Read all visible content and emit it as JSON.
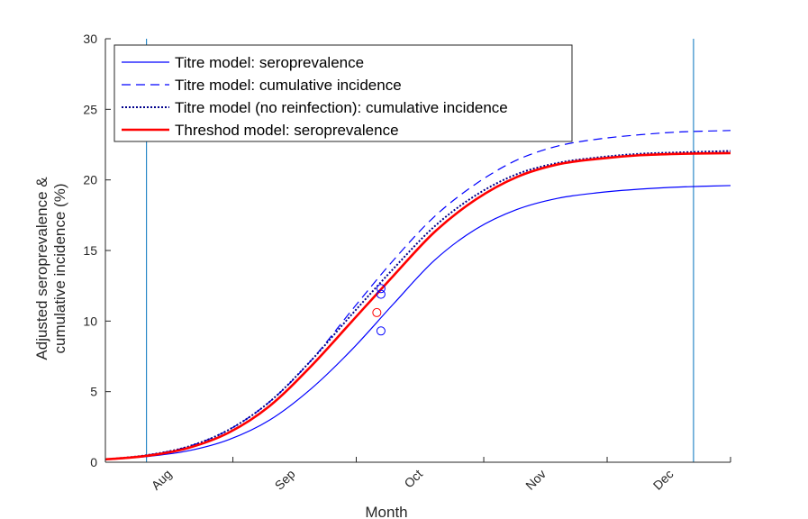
{
  "chart_data": {
    "type": "line",
    "xlabel": "Month",
    "ylabel_lines": [
      "Adjusted seroprevalence &",
      "cumulative incidence (%)"
    ],
    "xlim": [
      0,
      152
    ],
    "ylim": [
      0,
      30
    ],
    "yticks": [
      0,
      5,
      10,
      15,
      20,
      25,
      30
    ],
    "x_tick_marks": [
      0,
      31,
      61,
      92,
      122,
      152
    ],
    "x_tick_labels": [
      {
        "x": 15,
        "label": "Aug"
      },
      {
        "x": 45,
        "label": "Sep"
      },
      {
        "x": 76,
        "label": "Oct"
      },
      {
        "x": 106,
        "label": "Nov"
      },
      {
        "x": 137,
        "label": "Dec"
      }
    ],
    "vertical_lines": [
      10,
      143
    ],
    "legend_position": "top-left",
    "series": [
      {
        "name": "Titre model: seroprevalence",
        "color": "#0000ff",
        "style": "solid",
        "width": 1.2,
        "x": [
          0,
          10,
          20,
          30,
          40,
          50,
          60,
          70,
          80,
          90,
          100,
          110,
          120,
          130,
          140,
          152
        ],
        "y": [
          0.2,
          0.4,
          0.8,
          1.6,
          3.0,
          5.2,
          8.0,
          11.2,
          14.3,
          16.5,
          17.9,
          18.7,
          19.1,
          19.35,
          19.5,
          19.6
        ]
      },
      {
        "name": "Titre model: cumulative incidence",
        "color": "#0000ff",
        "style": "dashed",
        "width": 1.2,
        "x": [
          0,
          10,
          20,
          30,
          40,
          50,
          60,
          70,
          80,
          90,
          100,
          110,
          120,
          130,
          140,
          152
        ],
        "y": [
          0.2,
          0.5,
          1.1,
          2.3,
          4.3,
          7.2,
          10.8,
          14.3,
          17.4,
          19.7,
          21.4,
          22.4,
          22.9,
          23.2,
          23.4,
          23.5
        ]
      },
      {
        "name": "Titre model (no reinfection): cumulative incidence",
        "color": "#00008b",
        "style": "dotted",
        "width": 2,
        "x": [
          0,
          10,
          20,
          30,
          40,
          50,
          60,
          70,
          80,
          90,
          100,
          110,
          120,
          130,
          140,
          152
        ],
        "y": [
          0.2,
          0.5,
          1.1,
          2.3,
          4.3,
          7.2,
          10.5,
          13.7,
          16.7,
          18.9,
          20.4,
          21.2,
          21.6,
          21.85,
          21.95,
          22.05
        ]
      },
      {
        "name": "Threshod model: seroprevalence",
        "color": "#ff0000",
        "style": "solid",
        "width": 2.6,
        "x": [
          0,
          10,
          20,
          30,
          40,
          50,
          60,
          70,
          80,
          90,
          100,
          110,
          120,
          130,
          140,
          152
        ],
        "y": [
          0.2,
          0.45,
          1.0,
          2.1,
          4.0,
          6.8,
          10.0,
          13.2,
          16.3,
          18.6,
          20.2,
          21.1,
          21.5,
          21.75,
          21.85,
          21.9
        ]
      }
    ],
    "markers": [
      {
        "x": 67,
        "y": 12.3,
        "color": "#0000ff"
      },
      {
        "x": 67,
        "y": 11.9,
        "color": "#0000ff"
      },
      {
        "x": 66,
        "y": 10.6,
        "color": "#ff0000"
      },
      {
        "x": 67,
        "y": 9.3,
        "color": "#0000ff"
      }
    ]
  }
}
